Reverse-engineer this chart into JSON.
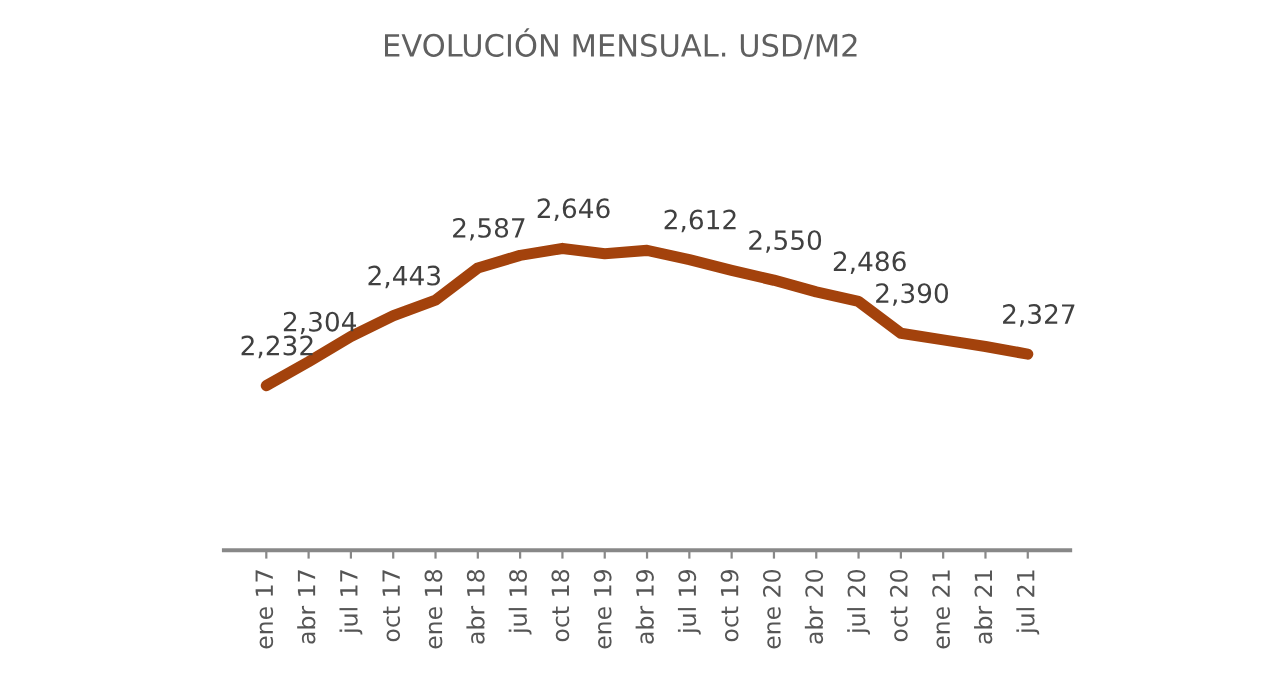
{
  "chart_data": {
    "type": "line",
    "title": "EVOLUCIÓN MENSUAL. USD/M2",
    "categories": [
      "ene 17",
      "abr 17",
      "jul 17",
      "oct 17",
      "ene 18",
      "abr 18",
      "jul 18",
      "oct 18",
      "ene 19",
      "abr 19",
      "jul 19",
      "oct 19",
      "ene 20",
      "abr 20",
      "jul 20",
      "oct 20",
      "ene 21",
      "abr 21",
      "jul 21"
    ],
    "series": [
      {
        "color": "#a3420c",
        "values": [
          2232,
          2304,
          2380,
          2443,
          2490,
          2587,
          2625,
          2646,
          2630,
          2640,
          2612,
          2580,
          2550,
          2515,
          2486,
          2390,
          2370,
          2350,
          2327
        ],
        "value_labels": [
          "2,232",
          "2,304",
          null,
          "2,443",
          null,
          "2,587",
          null,
          "2,646",
          null,
          null,
          "2,612",
          null,
          "2,550",
          null,
          "2,486",
          "2,390",
          null,
          null,
          "2,327"
        ]
      }
    ],
    "grid": false,
    "legend": false,
    "marker": "none",
    "line_style": "solid",
    "tick_labels": "x"
  }
}
